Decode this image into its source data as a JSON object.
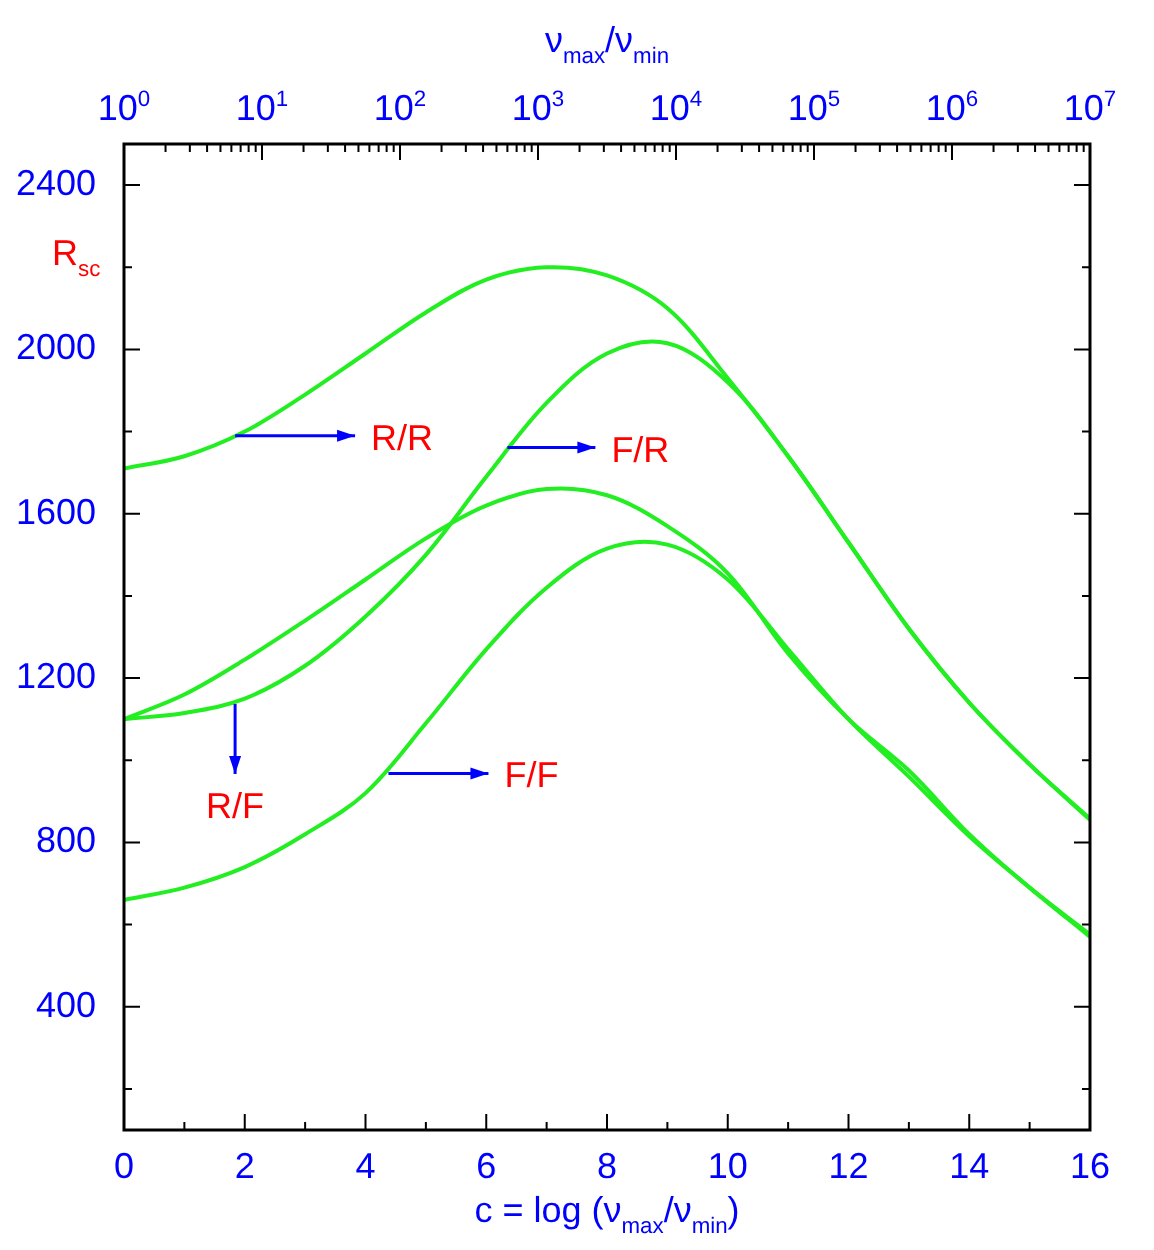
{
  "chart_data": {
    "type": "line",
    "xlabel": "c = log (ν$_{max}$/ν$_{min}$)",
    "x2label": "ν$_{max}$/ν$_{min}$",
    "ylabel": "R$_{sc}$",
    "x": [
      0,
      1,
      2,
      3,
      4,
      5,
      6,
      7,
      8,
      9,
      10,
      11,
      12,
      13,
      14,
      15,
      16
    ],
    "series": [
      {
        "color": "#22ee22",
        "values": [
          1710,
          1740,
          1800,
          1890,
          1990,
          2090,
          2170,
          2200,
          2180,
          2100,
          1930,
          1740,
          1530,
          1320,
          1140,
          990,
          858
        ]
      },
      {
        "color": "#22ee22",
        "values": [
          1100,
          1115,
          1150,
          1230,
          1350,
          1500,
          1690,
          1870,
          1990,
          2015,
          1920,
          1740,
          1530,
          1320,
          1140,
          990,
          855
        ]
      },
      {
        "color": "#22ee22",
        "values": [
          1100,
          1160,
          1245,
          1340,
          1440,
          1540,
          1620,
          1660,
          1645,
          1570,
          1455,
          1260,
          1100,
          975,
          820,
          690,
          576
        ]
      },
      {
        "color": "#22ee22",
        "values": [
          660,
          690,
          740,
          820,
          920,
          1090,
          1270,
          1420,
          1515,
          1525,
          1440,
          1270,
          1100,
          960,
          815,
          690,
          570
        ]
      }
    ],
    "xlim": [
      0,
      16
    ],
    "xticks": [
      0,
      {
        "value": 1,
        "label": null
      },
      2,
      {
        "value": 3,
        "label": null
      },
      4,
      {
        "value": 5,
        "label": null
      },
      6,
      {
        "value": 7,
        "label": null
      },
      8,
      {
        "value": 9,
        "label": null
      },
      10,
      {
        "value": 11,
        "label": null
      },
      12,
      {
        "value": 13,
        "label": null
      },
      14,
      {
        "value": 15,
        "label": null
      },
      16
    ],
    "ylim": [
      100,
      2500
    ],
    "yticks": [
      {
        "value": 200,
        "label": null
      },
      400,
      {
        "value": 600,
        "label": null
      },
      800,
      {
        "value": 1000,
        "label": null
      },
      1200,
      {
        "value": 1400,
        "label": null
      },
      1600,
      {
        "value": 1800,
        "label": null
      },
      2000,
      {
        "value": 2200,
        "label": null
      },
      2400
    ],
    "x2lim": [
      1,
      10000000
    ],
    "log": "x2",
    "x2ticks": [
      {
        "value": 1,
        "label": "10$^{0}$"
      },
      {
        "value": 2,
        "label": null
      },
      {
        "value": 3,
        "label": null
      },
      {
        "value": 4,
        "label": null
      },
      {
        "value": 5,
        "label": null
      },
      {
        "value": 6,
        "label": null
      },
      {
        "value": 7,
        "label": null
      },
      {
        "value": 8,
        "label": null
      },
      {
        "value": 9,
        "label": null
      },
      {
        "value": 10,
        "label": "10$^{1}$"
      },
      {
        "value": 20,
        "label": null
      },
      {
        "value": 30,
        "label": null
      },
      {
        "value": 40,
        "label": null
      },
      {
        "value": 50,
        "label": null
      },
      {
        "value": 60,
        "label": null
      },
      {
        "value": 70,
        "label": null
      },
      {
        "value": 80,
        "label": null
      },
      {
        "value": 90,
        "label": null
      },
      {
        "value": 100,
        "label": "10$^{2}$"
      },
      {
        "value": 200,
        "label": null
      },
      {
        "value": 300,
        "label": null
      },
      {
        "value": 400,
        "label": null
      },
      {
        "value": 500,
        "label": null
      },
      {
        "value": 600,
        "label": null
      },
      {
        "value": 700,
        "label": null
      },
      {
        "value": 800,
        "label": null
      },
      {
        "value": 900,
        "label": null
      },
      {
        "value": 1000,
        "label": "10$^{3}$"
      },
      {
        "value": 2000,
        "label": null
      },
      {
        "value": 3000,
        "label": null
      },
      {
        "value": 4000,
        "label": null
      },
      {
        "value": 5000,
        "label": null
      },
      {
        "value": 6000,
        "label": null
      },
      {
        "value": 7000,
        "label": null
      },
      {
        "value": 8000,
        "label": null
      },
      {
        "value": 9000,
        "label": null
      },
      {
        "value": 10000,
        "label": "10$^{4}$"
      },
      {
        "value": 20000,
        "label": null
      },
      {
        "value": 30000,
        "label": null
      },
      {
        "value": 40000,
        "label": null
      },
      {
        "value": 50000,
        "label": null
      },
      {
        "value": 60000,
        "label": null
      },
      {
        "value": 70000,
        "label": null
      },
      {
        "value": 80000,
        "label": null
      },
      {
        "value": 90000,
        "label": null
      },
      {
        "value": 100000,
        "label": "10$^{5}$"
      },
      {
        "value": 200000,
        "label": null
      },
      {
        "value": 300000,
        "label": null
      },
      {
        "value": 400000,
        "label": null
      },
      {
        "value": 500000,
        "label": null
      },
      {
        "value": 600000,
        "label": null
      },
      {
        "value": 700000,
        "label": null
      },
      {
        "value": 800000,
        "label": null
      },
      {
        "value": 900000,
        "label": null
      },
      {
        "value": 1000000,
        "label": "10$^{6}$"
      },
      {
        "value": 2000000,
        "label": null
      },
      {
        "value": 3000000,
        "label": null
      },
      {
        "value": 4000000,
        "label": null
      },
      {
        "value": 5000000,
        "label": null
      },
      {
        "value": 6000000,
        "label": null
      },
      {
        "value": 7000000,
        "label": null
      },
      {
        "value": 8000000,
        "label": null
      },
      {
        "value": 9000000,
        "label": null
      },
      {
        "value": 10000000,
        "label": "10$^{7}$"
      }
    ],
    "annotations": [
      {
        "text": "R/R",
        "x": 1.84,
        "y": 1790
      },
      {
        "text": "F/R",
        "x": 6.35,
        "y": 1761
      },
      {
        "text": "R/F",
        "x": 1.84,
        "y": 1137
      },
      {
        "text": "F/F",
        "x": 4.38,
        "y": 968
      }
    ],
    "grid": false,
    "legend": false,
    "marker": "none",
    "line_style": "solid"
  }
}
